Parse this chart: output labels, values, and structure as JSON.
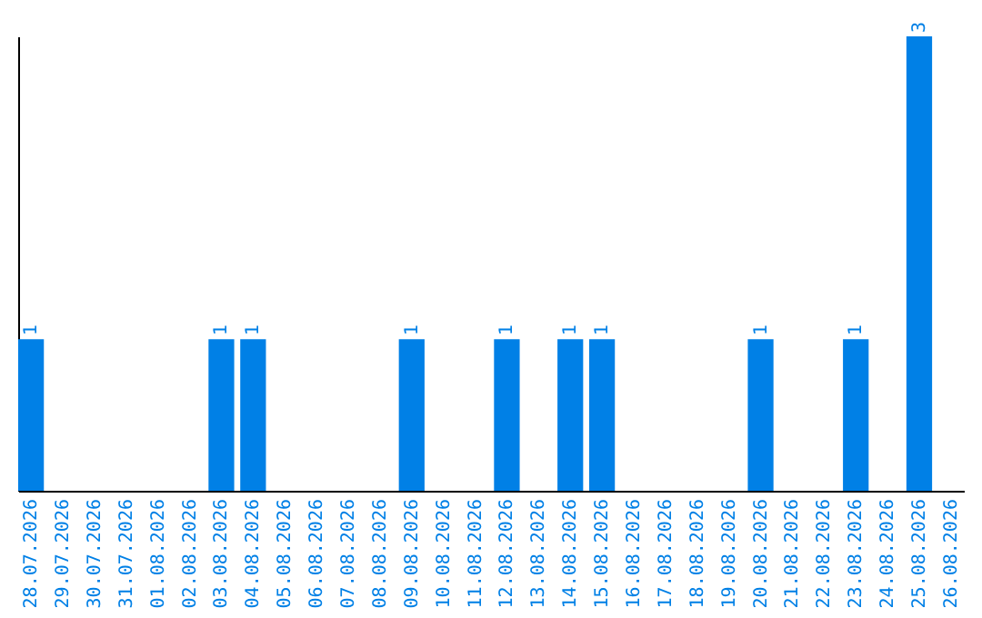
{
  "chart_data": {
    "type": "bar",
    "categories": [
      "28.07.2026",
      "29.07.2026",
      "30.07.2026",
      "31.07.2026",
      "01.08.2026",
      "02.08.2026",
      "03.08.2026",
      "04.08.2026",
      "05.08.2026",
      "06.08.2026",
      "07.08.2026",
      "08.08.2026",
      "09.08.2026",
      "10.08.2026",
      "11.08.2026",
      "12.08.2026",
      "13.08.2026",
      "14.08.2026",
      "15.08.2026",
      "16.08.2026",
      "17.08.2026",
      "18.08.2026",
      "19.08.2026",
      "20.08.2026",
      "21.08.2026",
      "22.08.2026",
      "23.08.2026",
      "24.08.2026",
      "25.08.2026",
      "26.08.2026"
    ],
    "values": [
      1,
      0,
      0,
      0,
      0,
      0,
      1,
      1,
      0,
      0,
      0,
      0,
      1,
      0,
      0,
      1,
      0,
      1,
      1,
      0,
      0,
      0,
      0,
      1,
      0,
      0,
      1,
      0,
      3,
      0
    ],
    "value_labels": [
      "1",
      null,
      null,
      null,
      null,
      null,
      "1",
      "1",
      null,
      null,
      null,
      null,
      "1",
      null,
      null,
      "1",
      null,
      "1",
      "1",
      null,
      null,
      null,
      null,
      "1",
      null,
      null,
      "1",
      null,
      "3",
      null
    ],
    "color": "#0080e6",
    "tick_labels": "x"
  }
}
